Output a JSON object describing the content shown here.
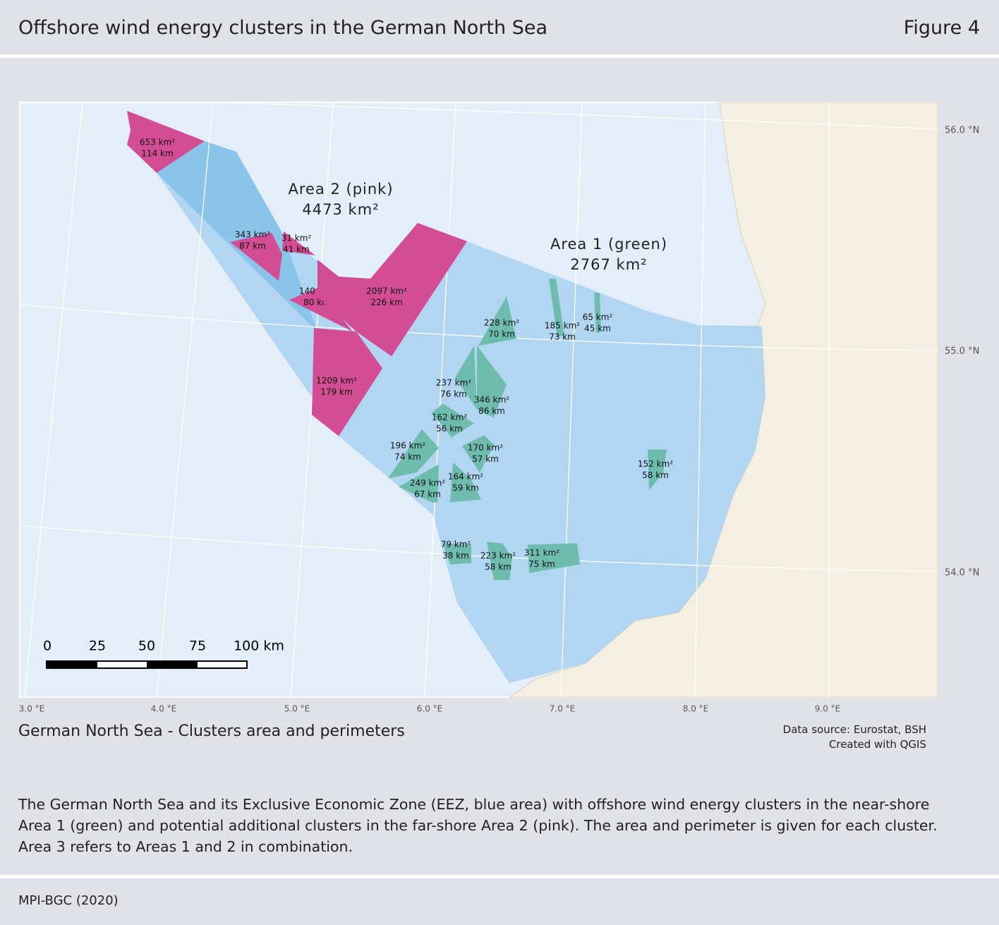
{
  "header": {
    "title": "Offshore wind energy clusters in the German North Sea",
    "figure": "Figure 4"
  },
  "map": {
    "areas": [
      {
        "name": "Area 1 (green)",
        "total": "2767 km²",
        "clusters": [
          {
            "area": "228 km²",
            "perimeter": "70 km"
          },
          {
            "area": "185 km²",
            "perimeter": "73 km"
          },
          {
            "area": "65 km²",
            "perimeter": "45 km"
          },
          {
            "area": "237 km²",
            "perimeter": "76 km"
          },
          {
            "area": "346 km²",
            "perimeter": "86 km"
          },
          {
            "area": "162 km²",
            "perimeter": "56 km"
          },
          {
            "area": "196 km²",
            "perimeter": "74 km"
          },
          {
            "area": "170 km²",
            "perimeter": "57 km"
          },
          {
            "area": "249 km²",
            "perimeter": "67 km"
          },
          {
            "area": "164 km²",
            "perimeter": "59 km"
          },
          {
            "area": "152 km²",
            "perimeter": "58 km"
          },
          {
            "area": "79 km²",
            "perimeter": "38 km"
          },
          {
            "area": "223 km²",
            "perimeter": "58 km"
          },
          {
            "area": "311 km²",
            "perimeter": "75 km"
          }
        ]
      },
      {
        "name": "Area 2 (pink)",
        "total": "4473 km²",
        "clusters": [
          {
            "area": "653 km²",
            "perimeter": "114 km"
          },
          {
            "area": "343 km²",
            "perimeter": "87 km"
          },
          {
            "area": "31 km²",
            "perimeter": "41 km"
          },
          {
            "area": "140 km²",
            "perimeter": "80 km"
          },
          {
            "area": "2097 km²",
            "perimeter": "226 km"
          },
          {
            "area": "1209 km²",
            "perimeter": "179 km"
          }
        ]
      }
    ],
    "latitude_labels": [
      "56.0 °N",
      "55.0 °N",
      "54.0 °N"
    ],
    "longitude_labels": [
      "3.0 °E",
      "4.0 °E",
      "5.0 °E",
      "6.0 °E",
      "7.0 °E",
      "8.0 °E",
      "9.0 °E"
    ],
    "scale_labels": [
      "0",
      "25",
      "50",
      "75",
      "100 km"
    ]
  },
  "caption": "German North Sea - Clusters area and perimeters",
  "source": [
    "Data source: Eurostat, BSH",
    "Created with QGIS"
  ],
  "description": [
    "The German North Sea and its Exclusive Economic Zone (EEZ, blue area) with offshore wind energy clusters in the near-shore",
    "Area 1 (green) and potential additional clusters in the far-shore Area 2 (pink). The area and perimeter is given for each cluster.",
    "Area 3 refers to Areas 1 and 2 in combination."
  ],
  "footer": "MPI-BGC (2020)"
}
